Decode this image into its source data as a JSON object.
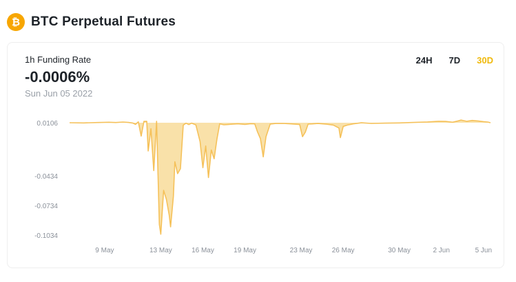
{
  "header": {
    "title": "BTC Perpetual Futures",
    "coin_icon": "bitcoin-icon",
    "coin_symbol": "₿",
    "coin_color": "#f7a600"
  },
  "metric": {
    "label": "1h Funding Rate",
    "value": "-0.0006%",
    "date": "Sun Jun 05 2022"
  },
  "range_tabs": [
    {
      "label": "24H",
      "active": false
    },
    {
      "label": "7D",
      "active": false
    },
    {
      "label": "30D",
      "active": true
    }
  ],
  "colors": {
    "accent": "#f0b90b",
    "series": "#f5c15a",
    "series_fill": "#f8dc9a",
    "text": "#1e2329",
    "muted": "#9aa0a8"
  },
  "chart_data": {
    "type": "area",
    "title": "",
    "xlabel": "",
    "ylabel": "",
    "y_ticks": [
      0.0106,
      -0.0434,
      -0.0734,
      -0.1034
    ],
    "y_tick_labels": [
      "0.0106",
      "-0.0434",
      "-0.0734",
      "-0.1034"
    ],
    "ylim": [
      -0.1034,
      0.0106
    ],
    "x_tick_labels": [
      "9 May",
      "13 May",
      "16 May",
      "19 May",
      "23 May",
      "26 May",
      "30 May",
      "2 Jun",
      "5 Jun"
    ],
    "x_tick_days": [
      9,
      13,
      16,
      19,
      23,
      26,
      30,
      33,
      36
    ],
    "xlim_days": [
      6.5,
      36.5
    ],
    "baseline": 0.0106,
    "grid": false,
    "series": [
      {
        "x": [
          6.5,
          7.5,
          8.5,
          9.3,
          9.8,
          10.3,
          10.7,
          11.0,
          11.2,
          11.4,
          11.6,
          11.8,
          12.0,
          12.1,
          12.3,
          12.5,
          12.7,
          12.9,
          13.0,
          13.2,
          13.4,
          13.6,
          13.7,
          13.9,
          14.0,
          14.2,
          14.4,
          14.6,
          14.8,
          15.0,
          15.2,
          15.5,
          15.8,
          16.0,
          16.2,
          16.4,
          16.6,
          16.8,
          17.0,
          17.2,
          17.5,
          17.8,
          18.1,
          18.5,
          19.0,
          19.4,
          19.7,
          19.9,
          20.1,
          20.3,
          20.5,
          20.8,
          21.2,
          21.7,
          22.3,
          22.9,
          23.1,
          23.3,
          23.5,
          23.8,
          24.2,
          24.8,
          25.3,
          25.7,
          25.8,
          26.0,
          26.3,
          26.7,
          27.3,
          28.0,
          29.0,
          30.0,
          31.0,
          32.0,
          32.8,
          33.3,
          33.8,
          34.2,
          34.4,
          34.8,
          35.2,
          35.6,
          36.0,
          36.3,
          36.5
        ],
        "y": [
          0.0106,
          0.0104,
          0.0108,
          0.0111,
          0.0108,
          0.0113,
          0.0109,
          0.0103,
          0.0089,
          0.0115,
          -0.003,
          0.0119,
          0.0121,
          -0.018,
          0.0045,
          -0.038,
          0.0121,
          -0.0925,
          -0.1025,
          -0.058,
          -0.067,
          -0.083,
          -0.095,
          -0.064,
          -0.029,
          -0.041,
          -0.036,
          0.0082,
          0.0101,
          0.0087,
          0.0102,
          0.0084,
          -0.0085,
          -0.035,
          -0.013,
          -0.045,
          -0.017,
          -0.026,
          -0.006,
          0.0095,
          0.0085,
          0.0088,
          0.0091,
          0.0095,
          0.0089,
          0.0096,
          0.0094,
          0.0011,
          -0.0055,
          -0.024,
          -0.0035,
          0.0093,
          0.0098,
          0.0099,
          0.0094,
          0.0088,
          -0.0035,
          0.0011,
          0.0092,
          0.0094,
          0.0098,
          0.0091,
          0.0082,
          0.0052,
          -0.0045,
          0.0069,
          0.0082,
          0.0094,
          0.0105,
          0.0099,
          0.0102,
          0.0104,
          0.0109,
          0.0114,
          0.0121,
          0.0119,
          0.0111,
          0.0125,
          0.0133,
          0.0121,
          0.0129,
          0.0124,
          0.0117,
          0.0113,
          0.0106
        ]
      }
    ]
  }
}
